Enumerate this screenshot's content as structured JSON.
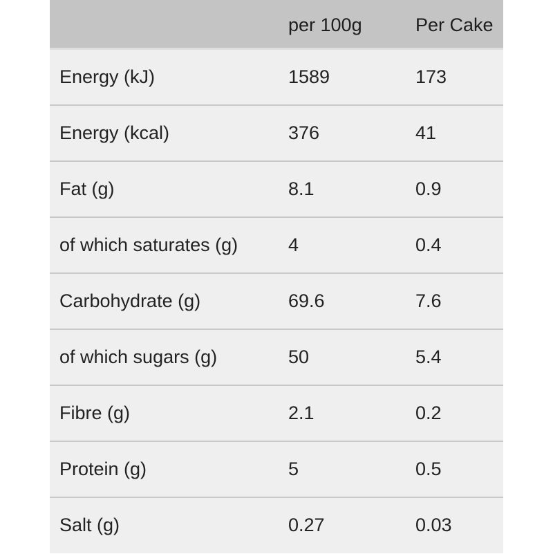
{
  "table": {
    "headers": [
      "",
      "per 100g",
      "Per Cake"
    ],
    "rows": [
      {
        "label": "Energy (kJ)",
        "per_100g": "1589",
        "per_cake": "173"
      },
      {
        "label": "Energy (kcal)",
        "per_100g": "376",
        "per_cake": "41"
      },
      {
        "label": "Fat (g)",
        "per_100g": "8.1",
        "per_cake": "0.9"
      },
      {
        "label": "of which saturates (g)",
        "per_100g": "4",
        "per_cake": "0.4"
      },
      {
        "label": "Carbohydrate (g)",
        "per_100g": "69.6",
        "per_cake": "7.6"
      },
      {
        "label": "of which sugars (g)",
        "per_100g": "50",
        "per_cake": "5.4"
      },
      {
        "label": "Fibre (g)",
        "per_100g": "2.1",
        "per_cake": "0.2"
      },
      {
        "label": "Protein (g)",
        "per_100g": "5",
        "per_cake": "0.5"
      },
      {
        "label": "Salt (g)",
        "per_100g": "0.27",
        "per_cake": "0.03"
      }
    ]
  },
  "colors": {
    "header_bg": "#c4c4c4",
    "row_bg": "#efefef",
    "divider": "#c9c9c9",
    "text": "#222222"
  }
}
